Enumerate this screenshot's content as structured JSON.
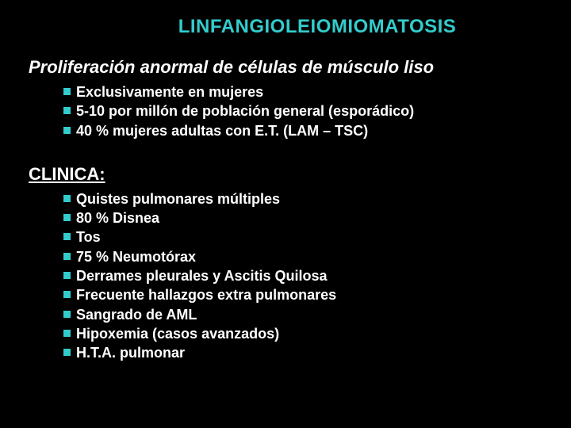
{
  "title": "LINFANGIOLEIOMIOMATOSIS",
  "subtitle": "Proliferación anormal de células de músculo liso",
  "section1": {
    "items": [
      "Exclusivamente en mujeres",
      "5-10 por millón de población general (esporádico)",
      "40 % mujeres adultas con E.T. (LAM – TSC)"
    ]
  },
  "section2": {
    "heading": "CLINICA:",
    "items": [
      "Quistes pulmonares múltiples",
      "80 % Disnea",
      "Tos",
      "75 % Neumotórax",
      "Derrames pleurales y Ascitis Quilosa",
      "Frecuente hallazgos extra pulmonares",
      "Sangrado de AML",
      "Hipoxemia (casos avanzados)",
      "H.T.A. pulmonar"
    ]
  },
  "colors": {
    "background": "#000000",
    "title": "#33cccc",
    "text": "#ffffff",
    "bullet": "#33cccc"
  }
}
